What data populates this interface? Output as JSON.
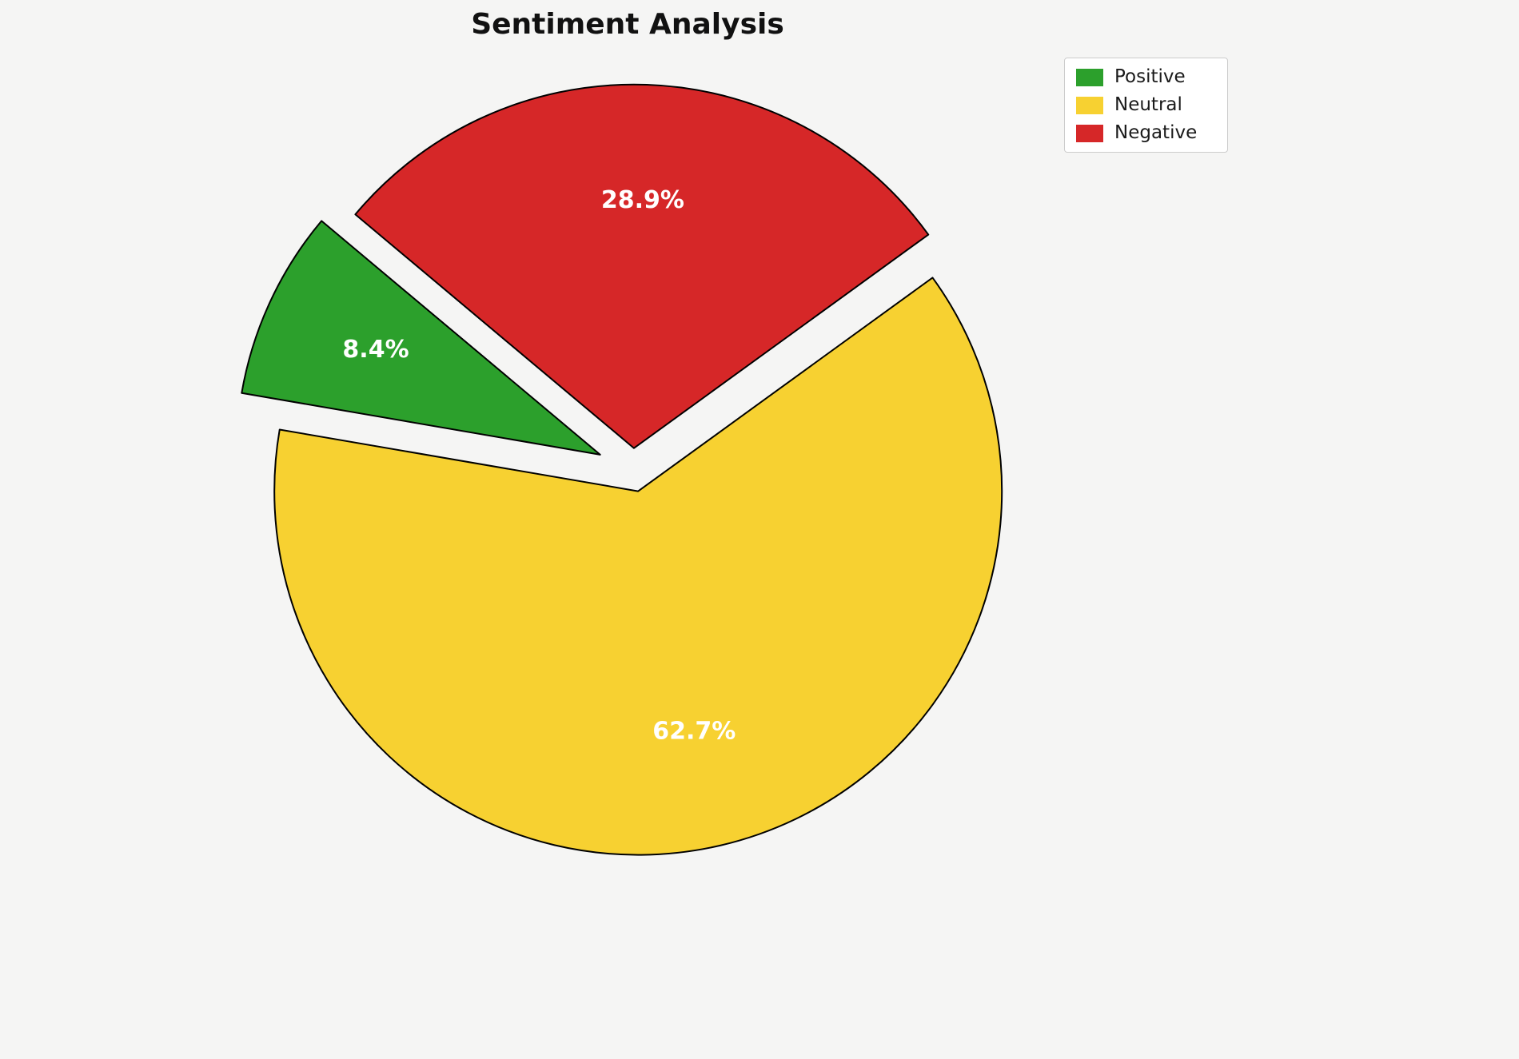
{
  "title": "Sentiment Analysis",
  "chart_data": {
    "type": "pie",
    "labels": [
      "Positive",
      "Neutral",
      "Negative"
    ],
    "values": [
      8.4,
      62.7,
      28.9
    ],
    "pct_labels": [
      "8.4%",
      "62.7%",
      "28.9%"
    ],
    "colors": [
      "#2ca02c",
      "#f7d131",
      "#d62728"
    ],
    "label_text_color": "#ffffff",
    "start_angle": 140,
    "direction": "counterclockwise",
    "explode": [
      0.1,
      0.06,
      0.06
    ],
    "legend_position": "upper right",
    "legend_entries": [
      {
        "label": "Positive",
        "color": "#2ca02c"
      },
      {
        "label": "Neutral",
        "color": "#f7d131"
      },
      {
        "label": "Negative",
        "color": "#d62728"
      }
    ]
  }
}
